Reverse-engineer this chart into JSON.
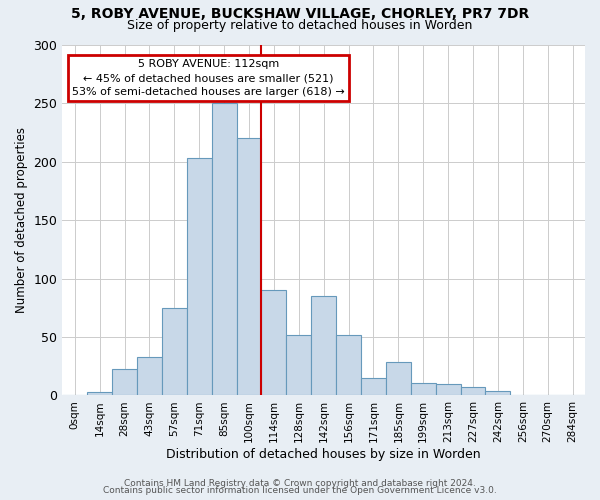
{
  "title": "5, ROBY AVENUE, BUCKSHAW VILLAGE, CHORLEY, PR7 7DR",
  "subtitle": "Size of property relative to detached houses in Worden",
  "xlabel": "Distribution of detached houses by size in Worden",
  "ylabel": "Number of detached properties",
  "bar_color": "#c8d8e8",
  "bar_edge_color": "#6699bb",
  "bar_labels": [
    "0sqm",
    "14sqm",
    "28sqm",
    "43sqm",
    "57sqm",
    "71sqm",
    "85sqm",
    "100sqm",
    "114sqm",
    "128sqm",
    "142sqm",
    "156sqm",
    "171sqm",
    "185sqm",
    "199sqm",
    "213sqm",
    "227sqm",
    "242sqm",
    "256sqm",
    "270sqm",
    "284sqm"
  ],
  "bar_heights": [
    0,
    3,
    23,
    33,
    75,
    203,
    250,
    220,
    90,
    52,
    85,
    52,
    15,
    29,
    11,
    10,
    7,
    4,
    0,
    0,
    0
  ],
  "ylim": [
    0,
    300
  ],
  "yticks": [
    0,
    50,
    100,
    150,
    200,
    250,
    300
  ],
  "vline_x": 7.5,
  "vline_color": "#cc0000",
  "annotation_title": "5 ROBY AVENUE: 112sqm",
  "annotation_line1": "← 45% of detached houses are smaller (521)",
  "annotation_line2": "53% of semi-detached houses are larger (618) →",
  "annotation_box_color": "#cc0000",
  "footer1": "Contains HM Land Registry data © Crown copyright and database right 2024.",
  "footer2": "Contains public sector information licensed under the Open Government Licence v3.0.",
  "bg_color": "#e8eef4",
  "plot_bg_color": "#ffffff",
  "grid_color": "#cccccc"
}
